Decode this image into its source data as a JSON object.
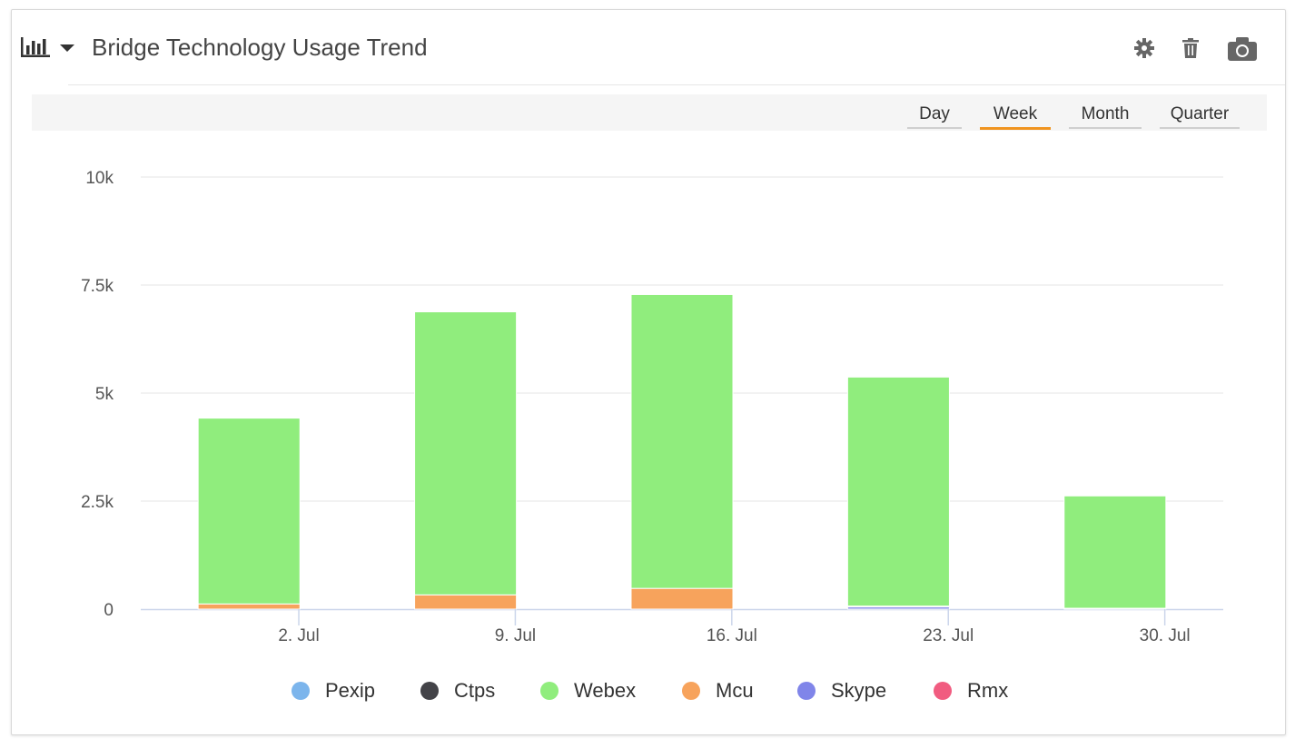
{
  "header": {
    "title": "Bridge Technology Usage Trend",
    "icons": [
      "bar-chart-icon",
      "caret-down-icon",
      "gear-icon",
      "trash-icon",
      "camera-icon"
    ]
  },
  "tabs": [
    {
      "label": "Day",
      "active": false
    },
    {
      "label": "Week",
      "active": true
    },
    {
      "label": "Month",
      "active": false
    },
    {
      "label": "Quarter",
      "active": false
    }
  ],
  "colors": {
    "accent": "#f0941f",
    "Pexip": "#7cb5ec",
    "Ctps": "#434348",
    "Webex": "#90ed7d",
    "Mcu": "#f7a35c",
    "Skype": "#8085e9",
    "Rmx": "#f15c80"
  },
  "chart_data": {
    "type": "bar",
    "stacked": true,
    "categories": [
      "2. Jul",
      "9. Jul",
      "16. Jul",
      "23. Jul",
      "30. Jul"
    ],
    "series": [
      {
        "name": "Pexip",
        "values": [
          0,
          0,
          0,
          0,
          0
        ]
      },
      {
        "name": "Ctps",
        "values": [
          0,
          0,
          0,
          0,
          0
        ]
      },
      {
        "name": "Webex",
        "values": [
          4300,
          6550,
          6800,
          5300,
          2600
        ]
      },
      {
        "name": "Mcu",
        "values": [
          120,
          330,
          480,
          10,
          20
        ]
      },
      {
        "name": "Skype",
        "values": [
          0,
          0,
          0,
          60,
          0
        ]
      },
      {
        "name": "Rmx",
        "values": [
          0,
          0,
          0,
          0,
          0
        ]
      }
    ],
    "stack_order_bottom_to_top": [
      "Skype",
      "Mcu",
      "Webex"
    ],
    "yticks": [
      "0",
      "2.5k",
      "5k",
      "7.5k",
      "10k"
    ],
    "ylim": [
      0,
      10000
    ],
    "grid": true,
    "legend_position": "bottom-center"
  }
}
